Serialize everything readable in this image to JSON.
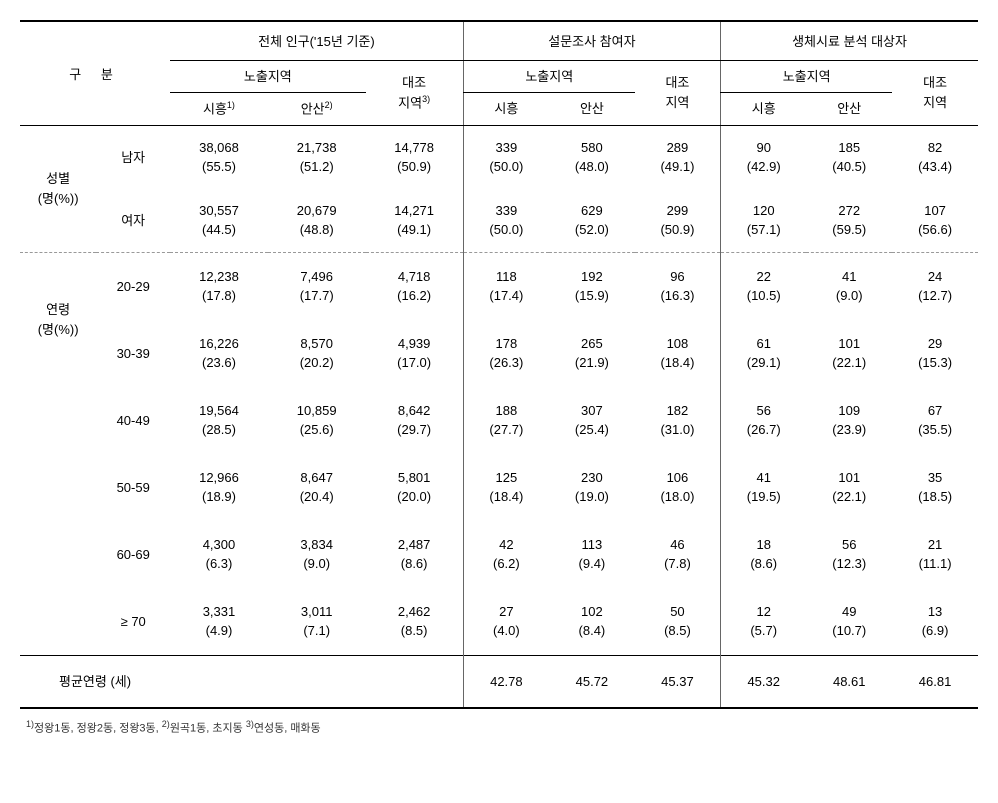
{
  "headers": {
    "gubun": "구  분",
    "group1": "전체 인구('15년 기준)",
    "group2": "설문조사 참여자",
    "group3": "생체시료 분석 대상자",
    "exposure": "노출지역",
    "control": "대조",
    "control2": "지역",
    "control_foot": "3)",
    "siheung": "시흥",
    "siheung_foot": "1)",
    "ansan": "안산",
    "ansan_foot": "2)"
  },
  "rowgroups": {
    "gender": {
      "l1": "성별",
      "l2": "(명(%))"
    },
    "age": {
      "l1": "연령",
      "l2": "(명(%))"
    }
  },
  "rows": {
    "male": {
      "label": "남자",
      "v": [
        "38,068",
        "(55.5)",
        "21,738",
        "(51.2)",
        "14,778",
        "(50.9)",
        "339",
        "(50.0)",
        "580",
        "(48.0)",
        "289",
        "(49.1)",
        "90",
        "(42.9)",
        "185",
        "(40.5)",
        "82",
        "(43.4)"
      ]
    },
    "female": {
      "label": "여자",
      "v": [
        "30,557",
        "(44.5)",
        "20,679",
        "(48.8)",
        "14,271",
        "(49.1)",
        "339",
        "(50.0)",
        "629",
        "(52.0)",
        "299",
        "(50.9)",
        "120",
        "(57.1)",
        "272",
        "(59.5)",
        "107",
        "(56.6)"
      ]
    },
    "a20": {
      "label": "20-29",
      "v": [
        "12,238",
        "(17.8)",
        "7,496",
        "(17.7)",
        "4,718",
        "(16.2)",
        "118",
        "(17.4)",
        "192",
        "(15.9)",
        "96",
        "(16.3)",
        "22",
        "(10.5)",
        "41",
        "(9.0)",
        "24",
        "(12.7)"
      ]
    },
    "a30": {
      "label": "30-39",
      "v": [
        "16,226",
        "(23.6)",
        "8,570",
        "(20.2)",
        "4,939",
        "(17.0)",
        "178",
        "(26.3)",
        "265",
        "(21.9)",
        "108",
        "(18.4)",
        "61",
        "(29.1)",
        "101",
        "(22.1)",
        "29",
        "(15.3)"
      ]
    },
    "a40": {
      "label": "40-49",
      "v": [
        "19,564",
        "(28.5)",
        "10,859",
        "(25.6)",
        "8,642",
        "(29.7)",
        "188",
        "(27.7)",
        "307",
        "(25.4)",
        "182",
        "(31.0)",
        "56",
        "(26.7)",
        "109",
        "(23.9)",
        "67",
        "(35.5)"
      ]
    },
    "a50": {
      "label": "50-59",
      "v": [
        "12,966",
        "(18.9)",
        "8,647",
        "(20.4)",
        "5,801",
        "(20.0)",
        "125",
        "(18.4)",
        "230",
        "(19.0)",
        "106",
        "(18.0)",
        "41",
        "(19.5)",
        "101",
        "(22.1)",
        "35",
        "(18.5)"
      ]
    },
    "a60": {
      "label": "60-69",
      "v": [
        "4,300",
        "(6.3)",
        "3,834",
        "(9.0)",
        "2,487",
        "(8.6)",
        "42",
        "(6.2)",
        "113",
        "(9.4)",
        "46",
        "(7.8)",
        "18",
        "(8.6)",
        "56",
        "(12.3)",
        "21",
        "(11.1)"
      ]
    },
    "a70": {
      "label": "≥ 70",
      "v": [
        "3,331",
        "(4.9)",
        "3,011",
        "(7.1)",
        "2,462",
        "(8.5)",
        "27",
        "(4.0)",
        "102",
        "(8.4)",
        "50",
        "(8.5)",
        "12",
        "(5.7)",
        "49",
        "(10.7)",
        "13",
        "(6.9)"
      ]
    }
  },
  "avg": {
    "label": "평균연령 (세)",
    "v": [
      "42.78",
      "45.72",
      "45.37",
      "45.32",
      "48.61",
      "46.81"
    ]
  },
  "footnote": "1)정왕1동, 정왕2동, 정왕3동, 2)원곡1동, 초지동 3)연성동, 매화동"
}
